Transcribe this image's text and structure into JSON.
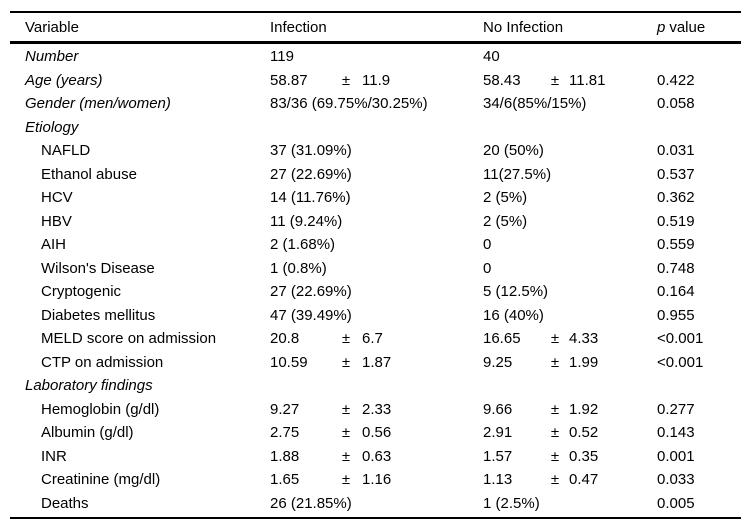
{
  "page": {
    "background_color": "#ffffff",
    "text_color": "#000000",
    "rule_color": "#000000"
  },
  "symbols": {
    "plus_minus": "±"
  },
  "table": {
    "header": {
      "variable": "Variable",
      "infection": "Infection",
      "no_infection": "No Infection",
      "p_italic": "p",
      "p_rest": "value"
    },
    "rows": [
      {
        "label": "Number",
        "style": "group",
        "infection": {
          "text": "119"
        },
        "no_infection": {
          "text": "40"
        },
        "p": ""
      },
      {
        "label": "Age (years)",
        "style": "group",
        "infection": {
          "mean": "58.87",
          "sd": "11.9"
        },
        "no_infection": {
          "mean": "58.43",
          "sd": "11.81"
        },
        "p": "0.422"
      },
      {
        "label": "Gender (men/women)",
        "style": "group",
        "infection": {
          "text": "83/36 (69.75%/30.25%)"
        },
        "no_infection": {
          "text": "34/6(85%/15%)"
        },
        "p": "0.058"
      },
      {
        "label": "Etiology",
        "style": "group",
        "infection": null,
        "no_infection": null,
        "p": ""
      },
      {
        "label": "NAFLD",
        "style": "item",
        "infection": {
          "text": "37 (31.09%)"
        },
        "no_infection": {
          "text": "20 (50%)"
        },
        "p": "0.031"
      },
      {
        "label": "Ethanol abuse",
        "style": "item",
        "infection": {
          "text": "27 (22.69%)"
        },
        "no_infection": {
          "text": "11(27.5%)"
        },
        "p": "0.537"
      },
      {
        "label": "HCV",
        "style": "item",
        "infection": {
          "text": "14 (11.76%)"
        },
        "no_infection": {
          "text": "2 (5%)"
        },
        "p": "0.362"
      },
      {
        "label": "HBV",
        "style": "item",
        "infection": {
          "text": "11 (9.24%)"
        },
        "no_infection": {
          "text": "2 (5%)"
        },
        "p": "0.519"
      },
      {
        "label": "AIH",
        "style": "item",
        "infection": {
          "text": "2 (1.68%)"
        },
        "no_infection": {
          "text": "0"
        },
        "p": "0.559"
      },
      {
        "label": "Wilson's Disease",
        "style": "item",
        "infection": {
          "text": "1 (0.8%)"
        },
        "no_infection": {
          "text": "0"
        },
        "p": "0.748"
      },
      {
        "label": "Cryptogenic",
        "style": "item",
        "infection": {
          "text": "27 (22.69%)"
        },
        "no_infection": {
          "text": "5 (12.5%)"
        },
        "p": "0.164"
      },
      {
        "label": "Diabetes mellitus",
        "style": "item",
        "infection": {
          "text": "47 (39.49%)"
        },
        "no_infection": {
          "text": "16 (40%)"
        },
        "p": "0.955"
      },
      {
        "label": "MELD score on admission",
        "style": "item",
        "infection": {
          "mean": "20.8",
          "sd": "6.7"
        },
        "no_infection": {
          "mean": "16.65",
          "sd": "4.33"
        },
        "p": "<0.001"
      },
      {
        "label": "CTP on admission",
        "style": "item",
        "infection": {
          "mean": "10.59",
          "sd": "1.87"
        },
        "no_infection": {
          "mean": "9.25",
          "sd": "1.99"
        },
        "p": "<0.001"
      },
      {
        "label": "Laboratory findings",
        "style": "group",
        "infection": null,
        "no_infection": null,
        "p": ""
      },
      {
        "label": "Hemoglobin (g/dl)",
        "style": "item",
        "infection": {
          "mean": "9.27",
          "sd": "2.33"
        },
        "no_infection": {
          "mean": "9.66",
          "sd": "1.92"
        },
        "p": "0.277"
      },
      {
        "label": "Albumin (g/dl)",
        "style": "item",
        "infection": {
          "mean": "2.75",
          "sd": "0.56"
        },
        "no_infection": {
          "mean": "2.91",
          "sd": "0.52"
        },
        "p": "0.143"
      },
      {
        "label": "INR",
        "style": "item",
        "infection": {
          "mean": "1.88",
          "sd": "0.63"
        },
        "no_infection": {
          "mean": "1.57",
          "sd": "0.35"
        },
        "p": "0.001"
      },
      {
        "label": "Creatinine (mg/dl)",
        "style": "item",
        "infection": {
          "mean": "1.65",
          "sd": "1.16"
        },
        "no_infection": {
          "mean": "1.13",
          "sd": "0.47"
        },
        "p": "0.033"
      },
      {
        "label": "Deaths",
        "style": "item",
        "infection": {
          "text": "26 (21.85%)"
        },
        "no_infection": {
          "text": "1 (2.5%)"
        },
        "p": "0.005"
      }
    ]
  }
}
